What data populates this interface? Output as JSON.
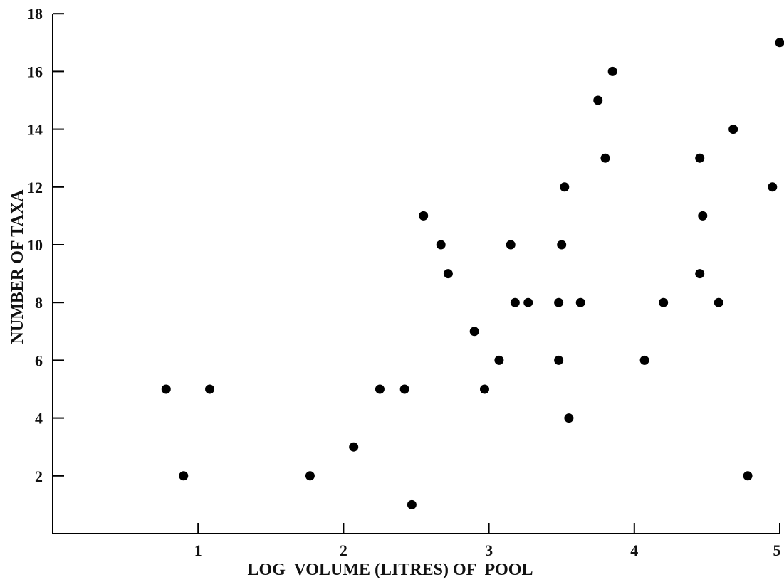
{
  "chart_data": {
    "type": "scatter",
    "title": "",
    "xlabel": "LOG  VOLUME (LITRES) OF  POOL",
    "ylabel": "NUMBER OF TAXA",
    "xlim": [
      0,
      5
    ],
    "ylim": [
      0,
      18
    ],
    "xticks": [
      1,
      2,
      3,
      4,
      5
    ],
    "yticks": [
      2,
      4,
      6,
      8,
      10,
      12,
      14,
      16,
      18
    ],
    "grid": false,
    "legend": "none",
    "marker_color": "#000000",
    "points": [
      {
        "x": 0.78,
        "y": 5
      },
      {
        "x": 0.9,
        "y": 2
      },
      {
        "x": 1.08,
        "y": 5
      },
      {
        "x": 1.77,
        "y": 2
      },
      {
        "x": 2.07,
        "y": 3
      },
      {
        "x": 2.25,
        "y": 5
      },
      {
        "x": 2.42,
        "y": 5
      },
      {
        "x": 2.47,
        "y": 1
      },
      {
        "x": 2.55,
        "y": 11
      },
      {
        "x": 2.67,
        "y": 10
      },
      {
        "x": 2.72,
        "y": 9
      },
      {
        "x": 2.9,
        "y": 7
      },
      {
        "x": 2.97,
        "y": 5
      },
      {
        "x": 3.07,
        "y": 6
      },
      {
        "x": 3.15,
        "y": 10
      },
      {
        "x": 3.18,
        "y": 8
      },
      {
        "x": 3.27,
        "y": 8
      },
      {
        "x": 3.48,
        "y": 8
      },
      {
        "x": 3.48,
        "y": 6
      },
      {
        "x": 3.5,
        "y": 10
      },
      {
        "x": 3.52,
        "y": 12
      },
      {
        "x": 3.55,
        "y": 4
      },
      {
        "x": 3.63,
        "y": 8
      },
      {
        "x": 3.75,
        "y": 15
      },
      {
        "x": 3.8,
        "y": 13
      },
      {
        "x": 3.85,
        "y": 16
      },
      {
        "x": 4.07,
        "y": 6
      },
      {
        "x": 4.2,
        "y": 8
      },
      {
        "x": 4.45,
        "y": 9
      },
      {
        "x": 4.45,
        "y": 13
      },
      {
        "x": 4.47,
        "y": 11
      },
      {
        "x": 4.58,
        "y": 8
      },
      {
        "x": 4.68,
        "y": 14
      },
      {
        "x": 4.78,
        "y": 2
      },
      {
        "x": 4.95,
        "y": 12
      },
      {
        "x": 5.0,
        "y": 17
      }
    ]
  }
}
